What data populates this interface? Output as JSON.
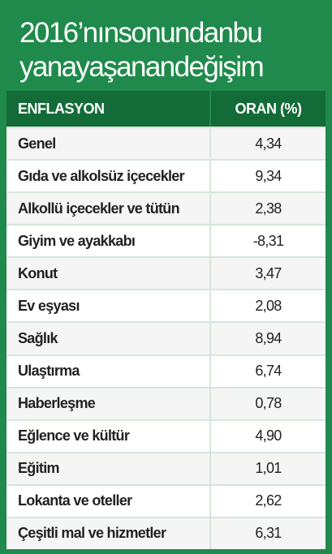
{
  "header": {
    "title_lines": [
      "2016’nınsonundanbu",
      "yanayaşanandeğişim"
    ]
  },
  "table": {
    "columns": [
      "ENFLASYON",
      "ORAN (%)"
    ],
    "rows": [
      [
        "Genel",
        "4,34"
      ],
      [
        "Gıda ve alkolsüz içecekler",
        "9,34"
      ],
      [
        "Alkollü içecekler ve tütün",
        "2,38"
      ],
      [
        "Giyim ve ayakkabı",
        "-8,31"
      ],
      [
        "Konut",
        "3,47"
      ],
      [
        "Ev eşyası",
        "2,08"
      ],
      [
        "Sağlık",
        "8,94"
      ],
      [
        "Ulaştırma",
        "6,74"
      ],
      [
        "Haberleşme",
        "0,78"
      ],
      [
        "Eğlence ve kültür",
        "4,90"
      ],
      [
        "Eğitim",
        "1,01"
      ],
      [
        "Lokanta ve oteller",
        "2,62"
      ],
      [
        "Çeşitli mal ve hizmetler",
        "6,31"
      ]
    ]
  }
}
